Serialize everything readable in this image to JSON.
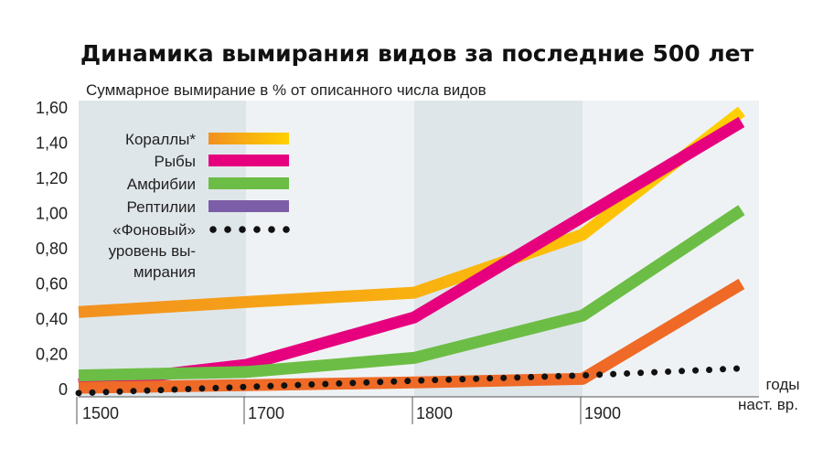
{
  "chart_data": {
    "type": "line",
    "title": "Динамика вымирания видов за последние 500 лет",
    "ylabel": "Суммарное вымирание в % от описанного числа видов",
    "xlabel_lines": [
      "годы",
      "наст. вр."
    ],
    "x_ticks": [
      "1500",
      "1700",
      "1800",
      "1900"
    ],
    "y_ticks": [
      "1,60",
      "1,40",
      "1,20",
      "1,00",
      "0,80",
      "0,60",
      "0,40",
      "0,20",
      "0"
    ],
    "ylim": [
      0,
      1.6
    ],
    "grid": false,
    "legend_position": "top-left",
    "x_segments": [
      "1500",
      "1700",
      "1800",
      "1900",
      "наст. вр."
    ],
    "series": [
      {
        "name": "Кораллы*",
        "color": "#ffb000",
        "color_start": "#f29020",
        "color_end": "#ffd000",
        "style": "solid",
        "points": [
          [
            0,
            0.44
          ],
          [
            1.05,
            0.5
          ],
          [
            2.0,
            0.55
          ],
          [
            3.0,
            0.88
          ],
          [
            3.95,
            1.58
          ]
        ]
      },
      {
        "name": "Рыбы",
        "color": "#e6007e",
        "style": "solid",
        "points": [
          [
            0,
            0.03
          ],
          [
            1.0,
            0.14
          ],
          [
            2.0,
            0.41
          ],
          [
            3.95,
            1.52
          ]
        ]
      },
      {
        "name": "Амфибии",
        "color": "#6cbd45",
        "style": "solid",
        "points": [
          [
            0,
            0.08
          ],
          [
            1.0,
            0.1
          ],
          [
            2.0,
            0.18
          ],
          [
            3.0,
            0.42
          ],
          [
            3.95,
            1.02
          ]
        ]
      },
      {
        "name": "Рептилии",
        "color": "#ee6a26",
        "legend_color": "#7b5ea7",
        "style": "solid",
        "points": [
          [
            0,
            0.01
          ],
          [
            2.0,
            0.04
          ],
          [
            3.0,
            0.06
          ],
          [
            3.95,
            0.6
          ]
        ]
      },
      {
        "name": "«Фоновый» уровень вымирания",
        "legend_lines": [
          "«Фоновый»",
          "уровень вы-",
          "мирания"
        ],
        "color": "#111111",
        "style": "dotted",
        "points": [
          [
            0,
            -0.02
          ],
          [
            2.0,
            0.05
          ],
          [
            3.0,
            0.08
          ],
          [
            3.95,
            0.12
          ]
        ]
      }
    ]
  }
}
